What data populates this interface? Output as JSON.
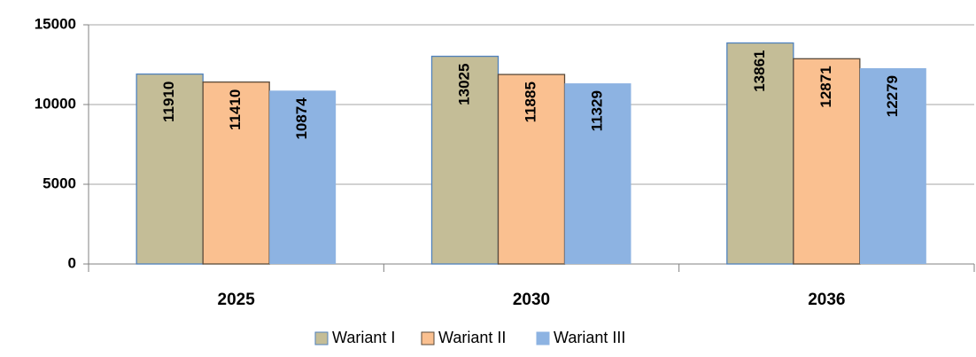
{
  "chart_data": {
    "type": "bar",
    "categories": [
      "2025",
      "2030",
      "2036"
    ],
    "series": [
      {
        "name": "Wariant I",
        "color": "#c4bd97",
        "edgecolor": "#4f81bd",
        "values": [
          11910,
          13025,
          13861
        ]
      },
      {
        "name": "Wariant II",
        "color": "#fac090",
        "edgecolor": "#5a4a3a",
        "values": [
          11410,
          11885,
          12871
        ]
      },
      {
        "name": "Wariant III",
        "color": "#8db3e2",
        "edgecolor": null,
        "values": [
          10874,
          11329,
          12279
        ]
      }
    ],
    "ylim": [
      0,
      15000
    ],
    "yticks": [
      0,
      5000,
      10000,
      15000
    ],
    "grid": true,
    "legend": "bottom"
  }
}
